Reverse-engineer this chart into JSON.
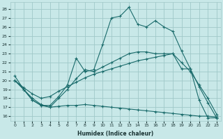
{
  "xlabel": "Humidex (Indice chaleur)",
  "xlim": [
    -0.5,
    23.5
  ],
  "ylim": [
    15.5,
    28.8
  ],
  "yticks": [
    16,
    17,
    18,
    19,
    20,
    21,
    22,
    23,
    24,
    25,
    26,
    27,
    28
  ],
  "xticks": [
    0,
    1,
    2,
    3,
    4,
    5,
    6,
    7,
    8,
    9,
    10,
    11,
    12,
    13,
    14,
    15,
    16,
    17,
    18,
    19,
    20,
    21,
    22,
    23
  ],
  "bg_color": "#c8e8e8",
  "grid_color": "#a0c8c8",
  "line_color": "#1a6b6b",
  "line1_x": [
    0,
    1,
    2,
    3,
    4,
    5,
    6,
    7,
    8,
    9,
    10,
    11,
    12,
    13,
    14,
    15,
    16,
    17,
    18,
    19,
    20,
    21,
    22,
    23
  ],
  "line1_y": [
    20.5,
    19.0,
    17.8,
    17.2,
    17.2,
    18.2,
    19.5,
    22.5,
    21.0,
    21.2,
    24.0,
    27.0,
    27.2,
    28.2,
    26.3,
    26.0,
    26.7,
    26.0,
    25.5,
    23.3,
    21.3,
    17.8,
    15.8,
    15.8
  ],
  "line2_x": [
    0,
    1,
    2,
    3,
    4,
    5,
    6,
    7,
    8,
    9,
    10,
    11,
    12,
    13,
    14,
    15,
    16,
    17,
    18,
    19,
    20,
    21,
    22,
    23
  ],
  "line2_y": [
    20.0,
    19.0,
    18.0,
    17.3,
    17.0,
    18.0,
    19.0,
    20.2,
    21.2,
    21.0,
    21.5,
    22.0,
    22.5,
    23.0,
    23.2,
    23.2,
    23.0,
    23.0,
    23.0,
    21.3,
    21.3,
    19.3,
    17.5,
    15.8
  ],
  "line3_x": [
    0,
    1,
    2,
    3,
    4,
    5,
    6,
    7,
    8,
    9,
    10,
    11,
    12,
    13,
    14,
    15,
    16,
    17,
    18,
    19,
    20,
    21,
    22,
    23
  ],
  "line3_y": [
    20.0,
    19.2,
    18.5,
    18.0,
    18.2,
    18.8,
    19.3,
    19.8,
    20.3,
    20.7,
    21.0,
    21.3,
    21.6,
    21.9,
    22.2,
    22.4,
    22.6,
    22.8,
    23.0,
    22.0,
    21.0,
    19.5,
    18.0,
    16.2
  ],
  "line4_x": [
    0,
    1,
    2,
    3,
    4,
    5,
    6,
    7,
    8,
    9,
    10,
    11,
    12,
    13,
    14,
    15,
    16,
    17,
    18,
    19,
    20,
    21,
    22,
    23
  ],
  "line4_y": [
    20.0,
    19.0,
    17.8,
    17.2,
    17.0,
    17.1,
    17.2,
    17.2,
    17.3,
    17.2,
    17.1,
    17.0,
    16.9,
    16.8,
    16.7,
    16.6,
    16.5,
    16.4,
    16.3,
    16.2,
    16.1,
    16.0,
    16.0,
    15.9
  ]
}
